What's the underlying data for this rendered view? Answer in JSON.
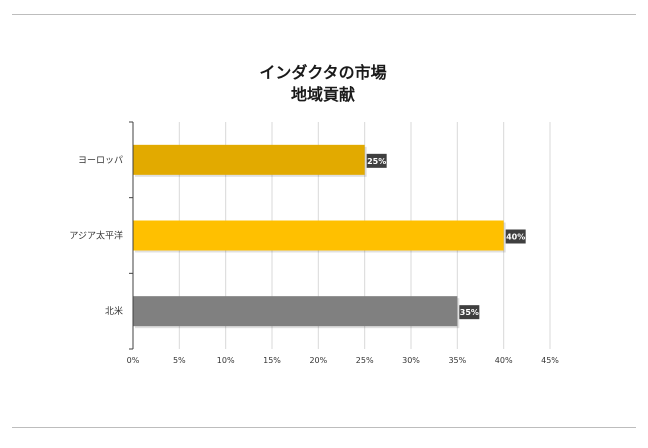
{
  "chart_data": {
    "type": "bar",
    "orientation": "horizontal",
    "title": [
      "インダクタの市場",
      "地域貢献"
    ],
    "categories": [
      "ヨーロッパ",
      "アジア太平洋",
      "北米"
    ],
    "values": [
      25,
      40,
      35
    ],
    "value_labels": [
      "25%",
      "40%",
      "35%"
    ],
    "bar_colors": [
      "#E2AA00",
      "#FFC000",
      "#808080"
    ],
    "xlim": [
      0,
      45
    ],
    "xticks": [
      0,
      5,
      10,
      15,
      20,
      25,
      30,
      35,
      40,
      45
    ],
    "xtick_labels": [
      "0%",
      "5%",
      "10%",
      "15%",
      "20%",
      "25%",
      "30%",
      "35%",
      "40%",
      "45%"
    ],
    "grid": "vertical",
    "legend": "none"
  }
}
